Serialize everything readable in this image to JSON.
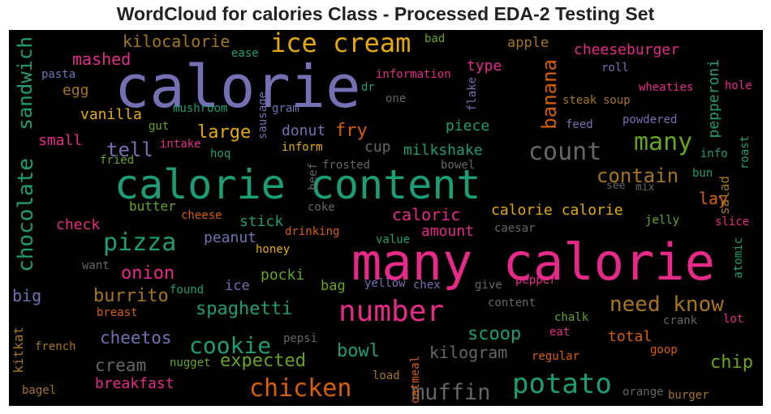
{
  "title": "WordCloud for calories Class - Processed EDA-2 Testing Set",
  "chart_data": {
    "type": "wordcloud",
    "title": "WordCloud for calories Class - Processed EDA-2 Testing Set",
    "background": "#000000",
    "palette": "Dark2",
    "words": [
      {
        "text": "calorie",
        "color": "#7570b3"
      },
      {
        "text": "many calorie",
        "color": "#e7298a"
      },
      {
        "text": "calorie content",
        "color": "#1b9e77"
      },
      {
        "text": "ice cream",
        "color": "#e6ab02"
      },
      {
        "text": "number",
        "color": "#e7298a"
      },
      {
        "text": "potato",
        "color": "#1b9e77"
      },
      {
        "text": "chicken",
        "color": "#d95f02"
      },
      {
        "text": "count",
        "color": "#666666"
      },
      {
        "text": "many",
        "color": "#66a61e"
      },
      {
        "text": "pizza",
        "color": "#1b9e77"
      },
      {
        "text": "cookie",
        "color": "#1b9e77"
      },
      {
        "text": "muffin",
        "color": "#666666"
      },
      {
        "text": "need know",
        "color": "#a6761d"
      },
      {
        "text": "chocolate",
        "color": "#1b9e77"
      },
      {
        "text": "sandwich",
        "color": "#1b9e77"
      },
      {
        "text": "banana",
        "color": "#d95f02"
      },
      {
        "text": "contain",
        "color": "#a6761d"
      },
      {
        "text": "tell",
        "color": "#7570b3"
      },
      {
        "text": "spaghetti",
        "color": "#1b9e77"
      },
      {
        "text": "expected",
        "color": "#66a61e"
      },
      {
        "text": "burrito",
        "color": "#a6761d"
      },
      {
        "text": "cheetos",
        "color": "#7570b3"
      },
      {
        "text": "cream",
        "color": "#666666"
      },
      {
        "text": "bowl",
        "color": "#1b9e77"
      },
      {
        "text": "scoop",
        "color": "#1b9e77"
      },
      {
        "text": "kilogram",
        "color": "#666666"
      },
      {
        "text": "chip",
        "color": "#66a61e"
      },
      {
        "text": "large",
        "color": "#e6ab02"
      },
      {
        "text": "fry",
        "color": "#d95f02"
      },
      {
        "text": "onion",
        "color": "#e7298a"
      },
      {
        "text": "mashed",
        "color": "#e7298a"
      },
      {
        "text": "kilocalorie",
        "color": "#a6761d"
      },
      {
        "text": "caloric",
        "color": "#e7298a"
      },
      {
        "text": "big",
        "color": "#7570b3"
      },
      {
        "text": "breakfast",
        "color": "#e7298a"
      },
      {
        "text": "lay",
        "color": "#d95f02"
      },
      {
        "text": "pepperoni",
        "color": "#1b9e77"
      },
      {
        "text": "milkshake",
        "color": "#1b9e77"
      },
      {
        "text": "cheeseburger",
        "color": "#e7298a"
      },
      {
        "text": "calorie calorie",
        "color": "#e6ab02"
      },
      {
        "text": "total",
        "color": "#d95f02"
      },
      {
        "text": "vanilla",
        "color": "#e6ab02"
      },
      {
        "text": "donut",
        "color": "#7570b3"
      },
      {
        "text": "piece",
        "color": "#1b9e77"
      },
      {
        "text": "amount",
        "color": "#e7298a"
      },
      {
        "text": "stick",
        "color": "#1b9e77"
      },
      {
        "text": "peanut",
        "color": "#7570b3"
      },
      {
        "text": "pocki",
        "color": "#66a61e"
      },
      {
        "text": "ice",
        "color": "#7570b3"
      },
      {
        "text": "bag",
        "color": "#66a61e"
      },
      {
        "text": "egg",
        "color": "#a6761d"
      },
      {
        "text": "small",
        "color": "#e7298a"
      },
      {
        "text": "check",
        "color": "#e7298a"
      },
      {
        "text": "type",
        "color": "#e7298a"
      },
      {
        "text": "apple",
        "color": "#a6761d"
      },
      {
        "text": "cup",
        "color": "#666666"
      },
      {
        "text": "butter",
        "color": "#66a61e"
      },
      {
        "text": "salad",
        "color": "#a6761d"
      },
      {
        "text": "kitkat",
        "color": "#a6761d"
      },
      {
        "text": "roll",
        "color": "#7570b3"
      },
      {
        "text": "wheaties",
        "color": "#e7298a"
      },
      {
        "text": "hole",
        "color": "#e7298a"
      },
      {
        "text": "steak",
        "color": "#a6761d"
      },
      {
        "text": "soup",
        "color": "#a6761d"
      },
      {
        "text": "powdered",
        "color": "#7570b3"
      },
      {
        "text": "feed",
        "color": "#7570b3"
      },
      {
        "text": "roast",
        "color": "#1b9e77"
      },
      {
        "text": "info",
        "color": "#1b9e77"
      },
      {
        "text": "bun",
        "color": "#1b9e77"
      },
      {
        "text": "mix",
        "color": "#666666"
      },
      {
        "text": "see",
        "color": "#666666"
      },
      {
        "text": "jelly",
        "color": "#66a61e"
      },
      {
        "text": "slice",
        "color": "#e7298a"
      },
      {
        "text": "atomic",
        "color": "#1b9e77"
      },
      {
        "text": "caesar",
        "color": "#666666"
      },
      {
        "text": "pepper",
        "color": "#e7298a"
      },
      {
        "text": "give",
        "color": "#666666"
      },
      {
        "text": "content",
        "color": "#666666"
      },
      {
        "text": "chalk",
        "color": "#66a61e"
      },
      {
        "text": "crank",
        "color": "#666666"
      },
      {
        "text": "lot",
        "color": "#e7298a"
      },
      {
        "text": "eat",
        "color": "#e7298a"
      },
      {
        "text": "regular",
        "color": "#d95f02"
      },
      {
        "text": "goop",
        "color": "#d95f02"
      },
      {
        "text": "orange",
        "color": "#666666"
      },
      {
        "text": "burger",
        "color": "#a6761d"
      },
      {
        "text": "load",
        "color": "#a6761d"
      },
      {
        "text": "oatmeal",
        "color": "#d95f02"
      },
      {
        "text": "nugget",
        "color": "#66a61e"
      },
      {
        "text": "pepsi",
        "color": "#666666"
      },
      {
        "text": "french",
        "color": "#a6761d"
      },
      {
        "text": "bagel",
        "color": "#a6761d"
      },
      {
        "text": "breast",
        "color": "#d95f02"
      },
      {
        "text": "found",
        "color": "#1b9e77"
      },
      {
        "text": "want",
        "color": "#666666"
      },
      {
        "text": "chex",
        "color": "#7570b3"
      },
      {
        "text": "yellow",
        "color": "#7570b3"
      },
      {
        "text": "value",
        "color": "#1b9e77"
      },
      {
        "text": "honey",
        "color": "#e6ab02"
      },
      {
        "text": "drinking",
        "color": "#d95f02"
      },
      {
        "text": "coke",
        "color": "#666666"
      },
      {
        "text": "cheese",
        "color": "#d95f02"
      },
      {
        "text": "beef",
        "color": "#666666"
      },
      {
        "text": "frosted",
        "color": "#666666"
      },
      {
        "text": "bowel",
        "color": "#666666"
      },
      {
        "text": "inform",
        "color": "#e6ab02"
      },
      {
        "text": "hoq",
        "color": "#1b9e77"
      },
      {
        "text": "intake",
        "color": "#e7298a"
      },
      {
        "text": "gut",
        "color": "#66a61e"
      },
      {
        "text": "fried",
        "color": "#66a61e"
      },
      {
        "text": "sausage",
        "color": "#7570b3"
      },
      {
        "text": "gram",
        "color": "#7570b3"
      },
      {
        "text": "mushroom",
        "color": "#1b9e77"
      },
      {
        "text": "pasta",
        "color": "#7570b3"
      },
      {
        "text": "ease",
        "color": "#1b9e77"
      },
      {
        "text": "bad",
        "color": "#66a61e"
      },
      {
        "text": "information",
        "color": "#e7298a"
      },
      {
        "text": "dr",
        "color": "#1b9e77"
      },
      {
        "text": "one",
        "color": "#666666"
      },
      {
        "text": "flake",
        "color": "#7570b3"
      }
    ]
  }
}
